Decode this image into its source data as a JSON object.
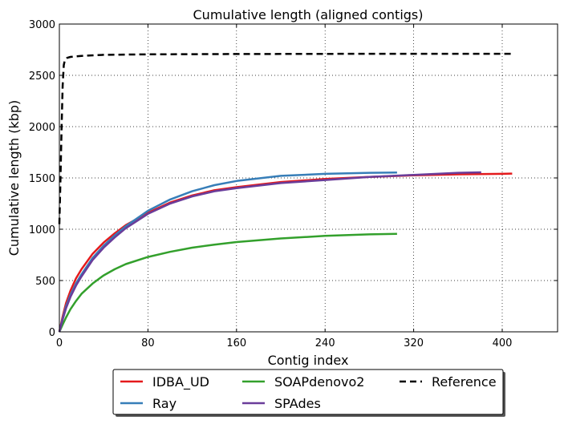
{
  "chart_data": {
    "type": "line",
    "title": "Cumulative length (aligned contigs)",
    "xlabel": "Contig index",
    "ylabel": "Cumulative length (kbp)",
    "xlim": [
      0,
      450
    ],
    "ylim": [
      0,
      3000
    ],
    "x_ticks": [
      0,
      80,
      160,
      240,
      320,
      400
    ],
    "y_ticks": [
      0,
      500,
      1000,
      1500,
      2000,
      2500,
      3000
    ],
    "grid": true,
    "legend_position": "bottom-center",
    "series": [
      {
        "name": "IDBA_UD",
        "color": "#e41a1c",
        "dashed": false,
        "x": [
          0,
          3,
          6,
          10,
          15,
          20,
          30,
          40,
          50,
          60,
          80,
          100,
          120,
          140,
          160,
          200,
          240,
          280,
          320,
          360,
          400,
          409
        ],
        "y": [
          0,
          150,
          280,
          400,
          520,
          610,
          760,
          870,
          960,
          1040,
          1160,
          1260,
          1330,
          1380,
          1410,
          1460,
          1490,
          1510,
          1525,
          1535,
          1540,
          1542
        ]
      },
      {
        "name": "Ray",
        "color": "#377eb8",
        "dashed": false,
        "x": [
          0,
          3,
          6,
          10,
          15,
          20,
          30,
          40,
          50,
          60,
          80,
          100,
          120,
          140,
          160,
          200,
          240,
          280,
          305
        ],
        "y": [
          0,
          130,
          250,
          360,
          470,
          560,
          720,
          840,
          940,
          1030,
          1180,
          1290,
          1370,
          1430,
          1470,
          1520,
          1540,
          1550,
          1552
        ]
      },
      {
        "name": "SOAPdenovo2",
        "color": "#33a02c",
        "dashed": false,
        "x": [
          0,
          3,
          6,
          10,
          15,
          20,
          30,
          40,
          50,
          60,
          80,
          100,
          120,
          140,
          160,
          200,
          240,
          280,
          305
        ],
        "y": [
          0,
          70,
          140,
          220,
          300,
          370,
          470,
          550,
          610,
          660,
          730,
          780,
          820,
          850,
          875,
          910,
          935,
          950,
          955
        ]
      },
      {
        "name": "SPAdes",
        "color": "#6a3d9a",
        "dashed": false,
        "x": [
          0,
          3,
          6,
          10,
          15,
          20,
          30,
          40,
          50,
          60,
          80,
          100,
          120,
          140,
          160,
          200,
          240,
          280,
          320,
          360,
          381
        ],
        "y": [
          0,
          120,
          230,
          340,
          450,
          540,
          700,
          820,
          920,
          1010,
          1150,
          1250,
          1320,
          1370,
          1400,
          1450,
          1480,
          1510,
          1530,
          1550,
          1555
        ]
      },
      {
        "name": "Reference",
        "color": "#000000",
        "dashed": true,
        "x": [
          0,
          1,
          2,
          3,
          4,
          5,
          7,
          10,
          20,
          40,
          80,
          160,
          240,
          320,
          409
        ],
        "y": [
          1050,
          1500,
          2000,
          2400,
          2600,
          2650,
          2670,
          2680,
          2690,
          2700,
          2705,
          2708,
          2709,
          2710,
          2710
        ]
      }
    ]
  }
}
